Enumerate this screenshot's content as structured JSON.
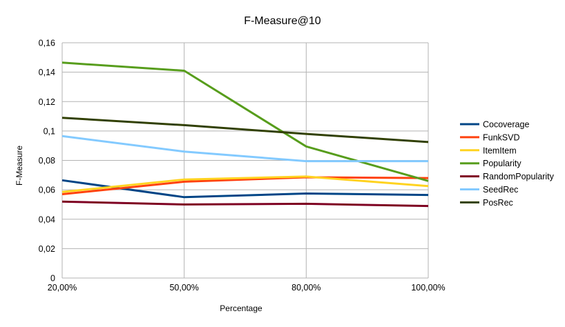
{
  "chart_data": {
    "type": "line",
    "title": "F-Measure@10",
    "xlabel": "Percentage",
    "ylabel": "F-Measure",
    "categories": [
      "20,00%",
      "50,00%",
      "80,00%",
      "100,00%"
    ],
    "ylim": [
      0,
      0.16
    ],
    "yticks": [
      "0",
      "0,02",
      "0,04",
      "0,06",
      "0,08",
      "0,1",
      "0,12",
      "0,14",
      "0,16"
    ],
    "grid": true,
    "legend_position": "right",
    "series": [
      {
        "name": "Cocoverage",
        "color": "#004586",
        "values": [
          0.0665,
          0.055,
          0.0575,
          0.0565
        ]
      },
      {
        "name": "FunkSVD",
        "color": "#ff420e",
        "values": [
          0.057,
          0.0655,
          0.0685,
          0.068
        ]
      },
      {
        "name": "ItemItem",
        "color": "#ffd320",
        "values": [
          0.0585,
          0.067,
          0.069,
          0.0625
        ]
      },
      {
        "name": "Popularity",
        "color": "#579d1c",
        "values": [
          0.1465,
          0.141,
          0.0895,
          0.066
        ]
      },
      {
        "name": "RandomPopularity",
        "color": "#7e0021",
        "values": [
          0.052,
          0.05,
          0.0505,
          0.049
        ]
      },
      {
        "name": "SeedRec",
        "color": "#83caff",
        "values": [
          0.0965,
          0.086,
          0.0795,
          0.0795
        ]
      },
      {
        "name": "PosRec",
        "color": "#314004",
        "values": [
          0.109,
          0.104,
          0.098,
          0.0925
        ]
      }
    ]
  }
}
